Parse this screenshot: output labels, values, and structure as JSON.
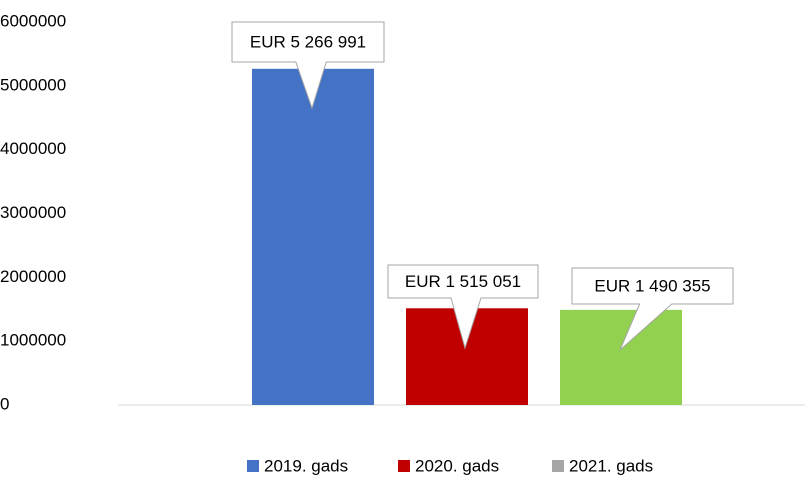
{
  "chart_data": {
    "type": "bar",
    "series": [
      {
        "name": "2019. gads",
        "color": "#4472c4",
        "legend_color": "#4472c4",
        "values": [
          5266991
        ],
        "value_labels": [
          "EUR 5 266 991"
        ]
      },
      {
        "name": "2020. gads",
        "color": "#c00000",
        "legend_color": "#c00000",
        "values": [
          1515051
        ],
        "value_labels": [
          "EUR 1 515 051"
        ]
      },
      {
        "name": "2021. gads",
        "color": "#92d050",
        "legend_color": "#a5a5a5",
        "values": [
          1490355
        ],
        "value_labels": [
          "EUR 1 490 355"
        ]
      }
    ],
    "ylim": [
      0,
      6000000
    ],
    "yticks": [
      0,
      1000000,
      2000000,
      3000000,
      4000000,
      5000000,
      6000000
    ],
    "grid": false,
    "legend": "bottom"
  }
}
